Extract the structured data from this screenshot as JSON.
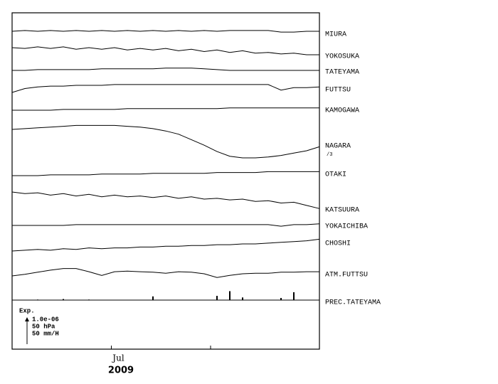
{
  "chart_data": {
    "type": "line",
    "xlabel": "2009",
    "xlim": [
      0,
      96
    ],
    "xticks": [
      {
        "value": 31,
        "label": "Jul"
      },
      {
        "value": 62,
        "label": null
      }
    ],
    "x": [
      0,
      4,
      8,
      12,
      16,
      20,
      24,
      28,
      32,
      36,
      40,
      44,
      48,
      52,
      56,
      60,
      64,
      68,
      72,
      76,
      80,
      84,
      88,
      92,
      96
    ],
    "scale_title": "Exp.",
    "scales": [
      {
        "value": 1e-06,
        "label": "1.0e-06",
        "series": [
          {
            "name": "MIURA",
            "color": "#000000",
            "values": [
              0,
              3e-08,
              0,
              3e-08,
              0,
              3e-08,
              0,
              3e-08,
              0,
              3e-08,
              0,
              3e-08,
              0,
              3e-08,
              0,
              3e-08,
              0,
              3e-08,
              3e-08,
              3e-08,
              3e-08,
              -3e-08,
              -3e-08,
              0,
              0
            ]
          },
          {
            "name": "YOKOSUKA",
            "color": "#000000",
            "values": [
              0,
              -3e-08,
              3e-08,
              -3e-08,
              3e-08,
              -6e-08,
              0,
              -6e-08,
              0,
              -9e-08,
              -3e-08,
              -9e-08,
              -3e-08,
              -1.2e-07,
              -6e-08,
              -1.5e-07,
              -9e-08,
              -1.8e-07,
              -1.2e-07,
              -2.1e-07,
              -1.8e-07,
              -2.4e-07,
              -2.1e-07,
              -2.7e-07,
              -2.7e-07
            ]
          },
          {
            "name": "TATEYAMA",
            "color": "#000000",
            "values": [
              0,
              0,
              3e-08,
              3e-08,
              3e-08,
              3e-08,
              3e-08,
              6e-08,
              6e-08,
              6e-08,
              6e-08,
              6e-08,
              9e-08,
              9e-08,
              9e-08,
              6e-08,
              3e-08,
              0,
              0,
              0,
              0,
              0,
              0,
              0,
              0
            ]
          },
          {
            "name": "FUTTSU",
            "color": "#000000",
            "values": [
              0,
              1.5e-07,
              2.1e-07,
              2.4e-07,
              2.4e-07,
              2.7e-07,
              2.7e-07,
              2.7e-07,
              3e-07,
              3e-07,
              3e-07,
              3e-07,
              3e-07,
              3e-07,
              3e-07,
              3e-07,
              3e-07,
              3e-07,
              3e-07,
              3e-07,
              3e-07,
              9e-08,
              1.8e-07,
              1.8e-07,
              2.1e-07
            ]
          },
          {
            "name": "KAMOGAWA",
            "color": "#000000",
            "values": [
              0,
              0,
              0,
              0,
              3e-08,
              3e-08,
              3e-08,
              3e-08,
              3e-08,
              6e-08,
              6e-08,
              6e-08,
              6e-08,
              6e-08,
              6e-08,
              6e-08,
              6e-08,
              9e-08,
              9e-08,
              9e-08,
              9e-08,
              9e-08,
              9e-08,
              9e-08,
              9e-08
            ]
          },
          {
            "name": "NAGARA",
            "color": "#000000",
            "note": {
              "value": 3,
              "label": "/3"
            },
            "values": [
              0,
              9e-08,
              1.8e-07,
              2.7e-07,
              3.6e-07,
              4.5e-07,
              4.5e-07,
              4.5e-07,
              4.5e-07,
              3.6e-07,
              2.7e-07,
              9e-08,
              -1.8e-07,
              -5.4e-07,
              -1.17e-06,
              -1.8e-06,
              -2.52e-06,
              -3.06e-06,
              -3.24e-06,
              -3.24e-06,
              -3.15e-06,
              -2.97e-06,
              -2.7e-06,
              -2.43e-06,
              -1.98e-06
            ]
          },
          {
            "name": "OTAKI",
            "color": "#000000",
            "values": [
              0,
              0,
              0,
              3e-08,
              3e-08,
              3e-08,
              3e-08,
              6e-08,
              6e-08,
              6e-08,
              6e-08,
              9e-08,
              9e-08,
              9e-08,
              9e-08,
              9e-08,
              1.2e-07,
              1.2e-07,
              1.2e-07,
              1.2e-07,
              1.5e-07,
              1.5e-07,
              1.5e-07,
              1.5e-07,
              1.5e-07
            ]
          },
          {
            "name": "KATSUURA",
            "color": "#000000",
            "values": [
              0,
              -6e-08,
              -3e-08,
              -1.2e-07,
              -6e-08,
              -1.5e-07,
              -9e-08,
              -1.8e-07,
              -1.2e-07,
              -1.8e-07,
              -1.5e-07,
              -2.1e-07,
              -1.5e-07,
              -2.4e-07,
              -1.8e-07,
              -2.7e-07,
              -2.4e-07,
              -3e-07,
              -2.7e-07,
              -3.6e-07,
              -3.3e-07,
              -4.2e-07,
              -3.9e-07,
              -5.1e-07,
              -6.3e-07
            ]
          },
          {
            "name": "YOKAICHIBA",
            "color": "#000000",
            "values": [
              0,
              0,
              0,
              0,
              0,
              3e-08,
              3e-08,
              3e-08,
              3e-08,
              3e-08,
              3e-08,
              3e-08,
              3e-08,
              3e-08,
              3e-08,
              3e-08,
              3e-08,
              3e-08,
              3e-08,
              3e-08,
              3e-08,
              -3e-08,
              3e-08,
              3e-08,
              6e-08
            ]
          },
          {
            "name": "CHOSHI",
            "color": "#000000",
            "values": [
              0,
              3e-08,
              6e-08,
              3e-08,
              9e-08,
              6e-08,
              1.2e-07,
              9e-08,
              1.2e-07,
              1.2e-07,
              1.5e-07,
              1.5e-07,
              1.8e-07,
              1.8e-07,
              2.1e-07,
              2.1e-07,
              2.4e-07,
              2.4e-07,
              2.7e-07,
              2.7e-07,
              3e-07,
              3.3e-07,
              3.6e-07,
              3.9e-07,
              4.5e-07
            ]
          }
        ]
      },
      {
        "value": 50,
        "label": "50 hPa",
        "series": [
          {
            "name": "ATM.FUTTSU",
            "color": "#000000",
            "values": [
              0,
              3,
              7,
              11,
              14,
              14,
              8,
              1,
              8,
              9,
              8,
              7,
              5,
              8,
              7,
              4,
              -3,
              1,
              4,
              5,
              5,
              7,
              7,
              8,
              8
            ]
          }
        ]
      },
      {
        "value": 50,
        "label": "50 mm/H",
        "series": [
          {
            "name": "PREC.TATEYAMA",
            "type": "bar",
            "color": "#000000",
            "values": [
              0,
              0,
              1,
              0,
              2,
              0,
              1,
              0,
              0,
              0,
              0,
              7,
              0,
              0,
              0,
              0,
              8,
              17,
              5,
              0,
              0,
              4,
              15,
              0,
              0
            ]
          }
        ]
      }
    ]
  }
}
